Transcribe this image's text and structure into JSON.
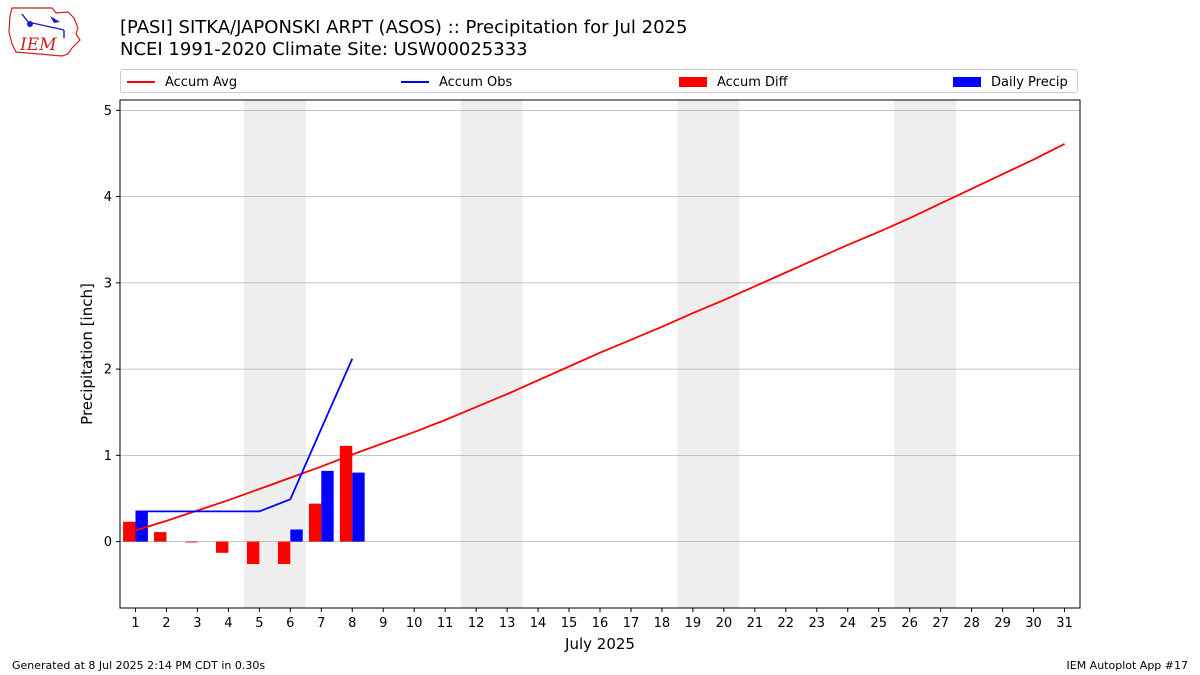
{
  "header": {
    "logo_text": "IEM",
    "title_line1": "[PASI] SITKA/JAPONSKI ARPT (ASOS) :: Precipitation for Jul 2025",
    "title_line2": "NCEI 1991-2020 Climate Site: USW00025333"
  },
  "legend": {
    "accum_avg": "Accum Avg",
    "accum_obs": "Accum Obs",
    "accum_diff": "Accum Diff",
    "daily_precip": "Daily Precip"
  },
  "footer": {
    "generated": "Generated at 8 Jul 2025 2:14 PM CDT in 0.30s",
    "app": "IEM Autoplot App #17"
  },
  "chart_data": {
    "type": "bar",
    "title": "[PASI] SITKA/JAPONSKI ARPT (ASOS) :: Precipitation for Jul 2025",
    "xlabel": "July 2025",
    "ylabel": "Precipitation [inch]",
    "ylim": [
      -0.77,
      5.12
    ],
    "yticks": [
      0,
      1,
      2,
      3,
      4,
      5
    ],
    "xlim": [
      0.5,
      31.5
    ],
    "xticks": [
      1,
      2,
      3,
      4,
      5,
      6,
      7,
      8,
      9,
      10,
      11,
      12,
      13,
      14,
      15,
      16,
      17,
      18,
      19,
      20,
      21,
      22,
      23,
      24,
      25,
      26,
      27,
      28,
      29,
      30,
      31
    ],
    "grid": true,
    "legend_position": "top",
    "weekend_shading": [
      [
        5,
        6
      ],
      [
        12,
        13
      ],
      [
        19,
        20
      ],
      [
        26,
        27
      ]
    ],
    "colors": {
      "accum_avg": "#ff0000",
      "accum_obs": "#0000ff",
      "accum_diff": "#ff0000",
      "daily_precip": "#0000ff",
      "weekend": "#eeeeee",
      "grid": "#b0b0b0"
    },
    "series": [
      {
        "name": "Accum Avg",
        "kind": "line",
        "x": [
          1,
          2,
          3,
          4,
          5,
          6,
          7,
          8,
          9,
          10,
          11,
          12,
          13,
          14,
          15,
          16,
          17,
          18,
          19,
          20,
          21,
          22,
          23,
          24,
          25,
          26,
          27,
          28,
          29,
          30,
          31
        ],
        "values": [
          0.13,
          0.24,
          0.36,
          0.48,
          0.61,
          0.74,
          0.87,
          1.01,
          1.14,
          1.27,
          1.41,
          1.56,
          1.71,
          1.87,
          2.03,
          2.19,
          2.34,
          2.49,
          2.65,
          2.8,
          2.96,
          3.12,
          3.28,
          3.44,
          3.59,
          3.75,
          3.92,
          4.09,
          4.26,
          4.43,
          4.61
        ]
      },
      {
        "name": "Accum Obs",
        "kind": "line",
        "x": [
          1,
          2,
          3,
          4,
          5,
          6,
          7,
          8
        ],
        "values": [
          0.35,
          0.35,
          0.35,
          0.35,
          0.35,
          0.49,
          1.31,
          2.12
        ]
      },
      {
        "name": "Accum Diff",
        "kind": "bar",
        "x": [
          1,
          2,
          3,
          4,
          5,
          6,
          7,
          8
        ],
        "values": [
          0.23,
          0.11,
          -0.01,
          -0.13,
          -0.26,
          -0.26,
          0.44,
          1.11
        ]
      },
      {
        "name": "Daily Precip",
        "kind": "bar",
        "x": [
          1,
          2,
          3,
          4,
          5,
          6,
          7,
          8
        ],
        "values": [
          0.35,
          0,
          0,
          0,
          0,
          0.14,
          0.82,
          0.8
        ]
      }
    ]
  }
}
